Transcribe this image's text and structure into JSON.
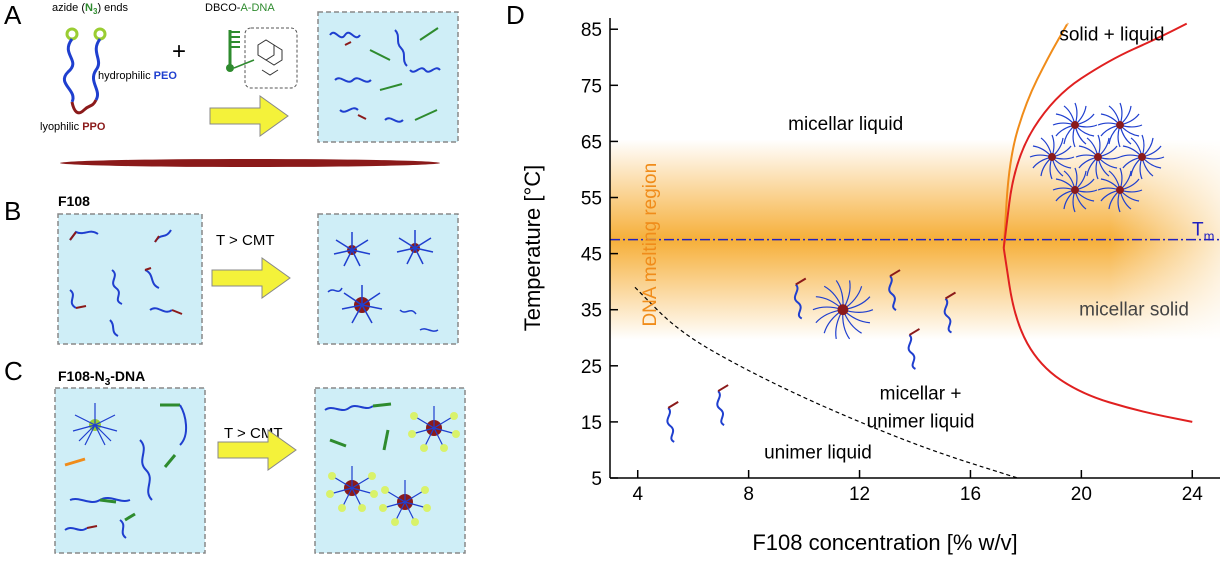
{
  "panels": {
    "A": {
      "letter": "A",
      "azide_pre": "azide (",
      "azide_n": "N",
      "azide_sub": "3",
      "azide_post": ") ends",
      "hydrophilic_pre": "hydrophilic ",
      "hydrophilic_em": "PEO",
      "lyophilic_pre": "lyophilic ",
      "lyophilic_em": "PPO",
      "plus": "+",
      "dbco_pre": "DBCO-",
      "dbco_em": "A-DNA"
    },
    "B": {
      "letter": "B",
      "label": "F108",
      "arrow_text": "T > CMT"
    },
    "C": {
      "letter": "C",
      "label_pre": "F108-N",
      "label_sub": "3",
      "label_post": "-DNA",
      "arrow_text": "T > CMT"
    },
    "D": {
      "letter": "D"
    }
  },
  "chart_data": {
    "type": "line",
    "title": "",
    "xlabel": "F108 concentration [% w/v]",
    "ylabel": "Temperature [°C]",
    "xlim": [
      3,
      25
    ],
    "ylim": [
      5,
      87
    ],
    "xticks": [
      4,
      8,
      12,
      16,
      20,
      24
    ],
    "yticks": [
      5,
      15,
      25,
      35,
      45,
      55,
      65,
      75,
      85
    ],
    "tm_value": 47.5,
    "tm_label": "T",
    "tm_sub": "m",
    "band_label": "DNA melting region",
    "band_center": 47.5,
    "region_labels": [
      {
        "text": "micellar liquid",
        "x": 11.5,
        "y": 67
      },
      {
        "text": "solid + liquid",
        "x": 21.1,
        "y": 83
      },
      {
        "text": "micellar solid",
        "x": 21.9,
        "y": 34
      },
      {
        "text": "micellar +",
        "x": 14.2,
        "y": 19
      },
      {
        "text": "unimer liquid",
        "x": 14.2,
        "y": 14
      },
      {
        "text": "unimer liquid",
        "x": 10.5,
        "y": 8.5
      }
    ],
    "series": [
      {
        "x": [
          17.2,
          17.4,
          18.0,
          18.8,
          19.5
        ],
        "y": [
          46,
          62,
          72,
          80,
          86
        ]
      },
      {
        "x": [
          17.2,
          17.6,
          19.0,
          21.0,
          22.8,
          23.8
        ],
        "y": [
          46,
          62,
          73,
          79.5,
          83.5,
          86
        ]
      },
      {
        "x": [
          17.2,
          17.6,
          18.5,
          20.0,
          22.0,
          24.0
        ],
        "y": [
          46,
          33,
          25,
          20,
          17,
          15
        ]
      },
      {
        "x": [
          3.9,
          5.5,
          8.0,
          11.0,
          14.5,
          17.7
        ],
        "y": [
          39,
          31,
          24,
          17,
          10,
          5
        ]
      }
    ]
  },
  "colors": {
    "peo": "#1f3fcf",
    "ppo": "#8b1a1a",
    "dna": "#2e8b2e",
    "azide": "#9acd32",
    "arrow": "#f4f23a",
    "box": "#cfeef7",
    "tm": "#2020c0",
    "band": "#f5a623",
    "solid_line": "#e02020",
    "orange_line": "#f08c1a",
    "band_text": "#f08c1a"
  }
}
